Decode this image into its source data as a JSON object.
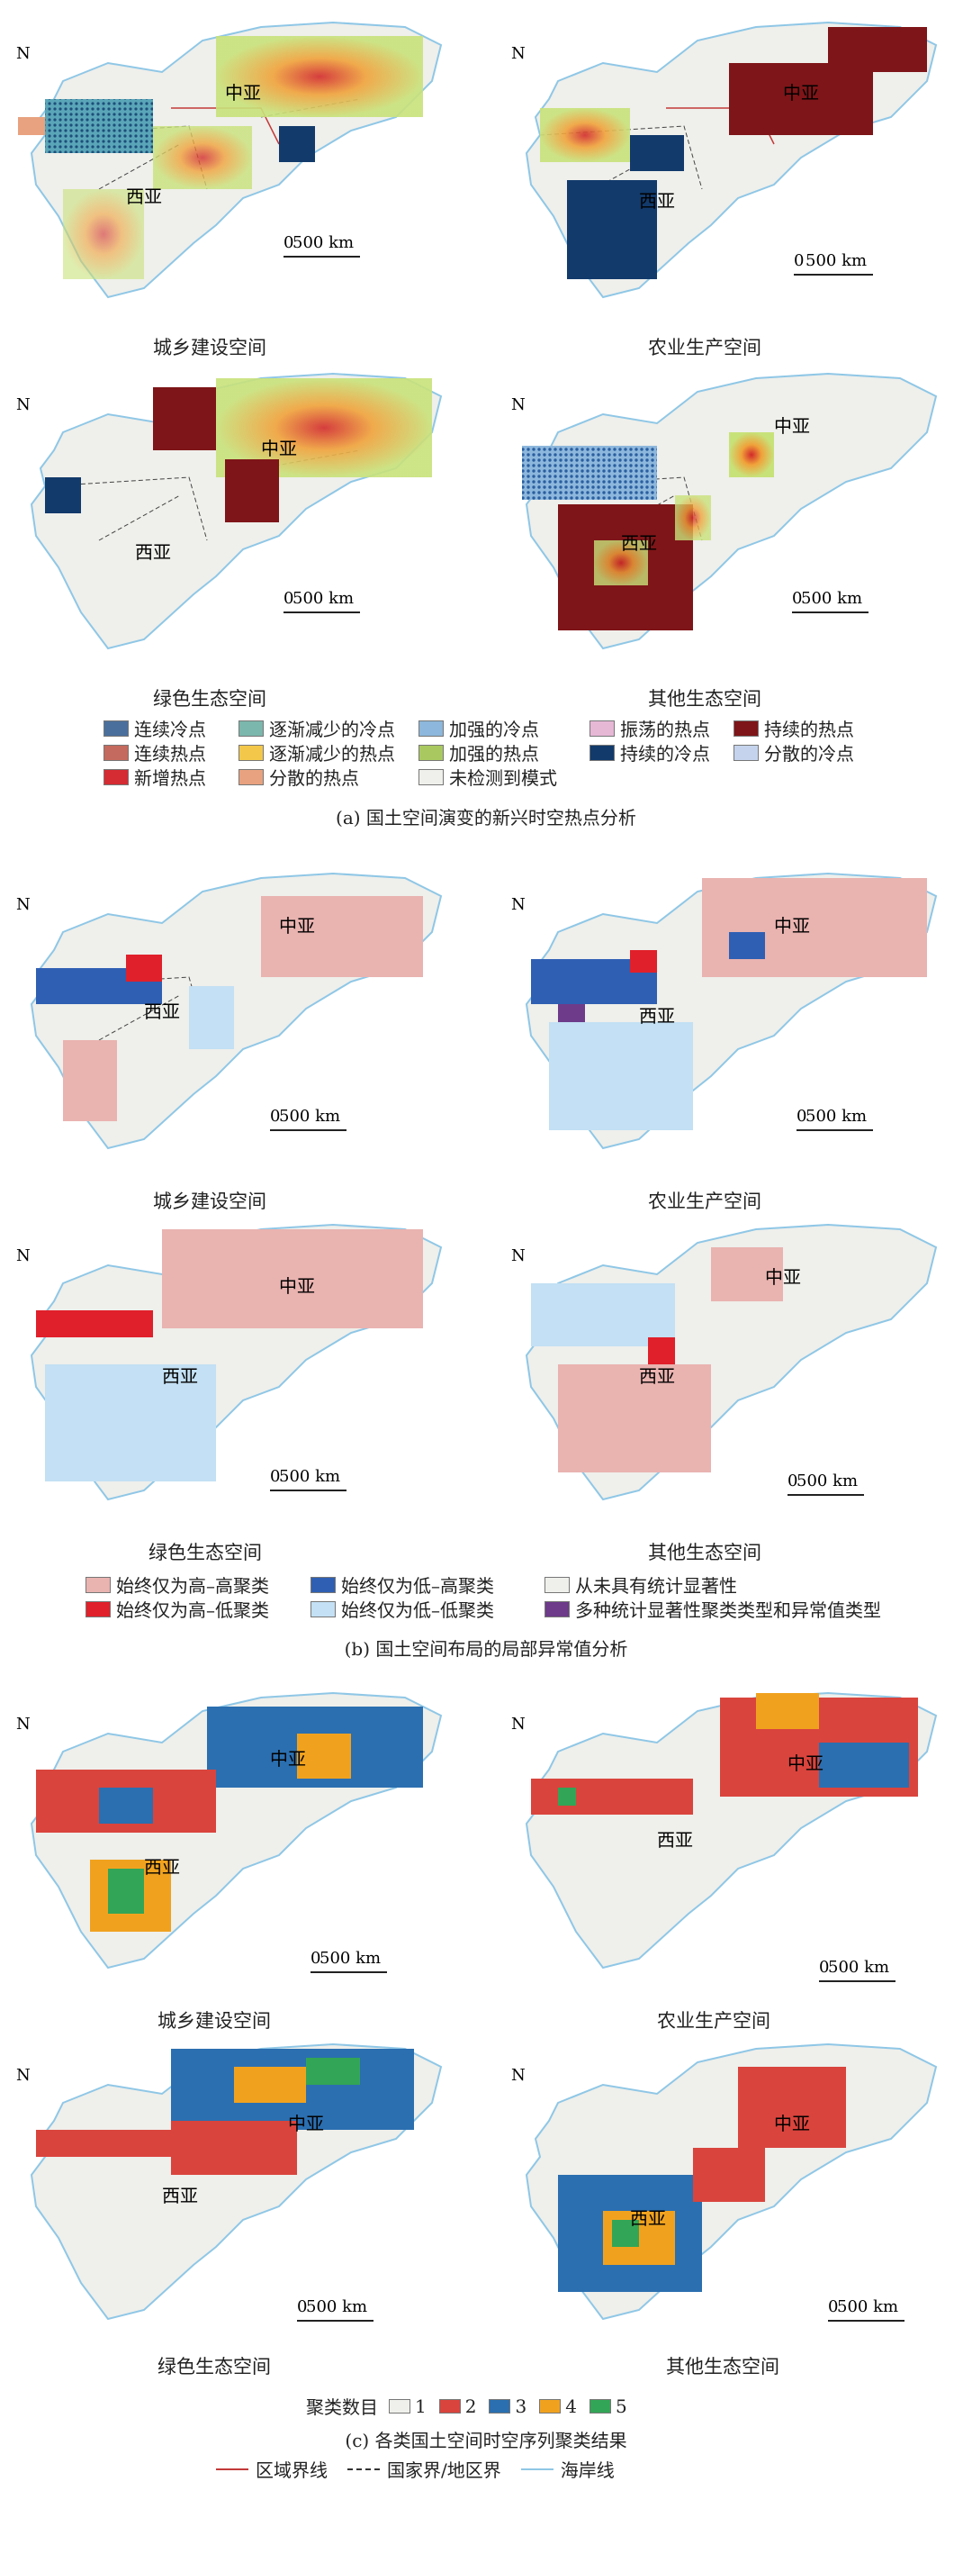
{
  "colors": {
    "land": "#efefeb",
    "coast": "#8fc7e6",
    "border": "#444444",
    "region_line": "#c23a38",
    "hot_persist": "#7e1518",
    "cold_persist": "#123a6b",
    "high_high": "#e9b3b0",
    "low_low": "#c3e0f4",
    "cluster_2": "#d9443d",
    "cluster_3": "#2b6fb0",
    "cluster_4": "#f0a21f",
    "cluster_5": "#33a556"
  },
  "map_labels": {
    "north": "N",
    "central_asia": "中亚",
    "west_asia": "西亚",
    "scale": "500 km",
    "scale_zero": "0"
  },
  "spaces": {
    "urban": "城乡建设空间",
    "agri": "农业生产空间",
    "green": "绿色生态空间",
    "other": "其他生态空间"
  },
  "section_a": {
    "title": "(a) 国土空间演变的新兴时空热点分析",
    "legend": [
      {
        "label": "连续冷点",
        "color": "#4a6f9c"
      },
      {
        "label": "逐渐减少的冷点",
        "color": "#7bb7ad"
      },
      {
        "label": "加强的冷点",
        "color": "#8db7dc"
      },
      {
        "label": "振荡的热点",
        "color": "#e7b7d6"
      },
      {
        "label": "持续的热点",
        "color": "#7e1518"
      },
      {
        "label": "连续热点",
        "color": "#c46a5e"
      },
      {
        "label": "逐渐减少的热点",
        "color": "#f3c84a"
      },
      {
        "label": "加强的热点",
        "color": "#a9c960"
      },
      {
        "label": "持续的冷点",
        "color": "#123a6b"
      },
      {
        "label": "分散的冷点",
        "color": "#c5d3ec"
      },
      {
        "label": "新增热点",
        "color": "#d52b33"
      },
      {
        "label": "分散的热点",
        "color": "#e8a27f"
      },
      {
        "label": "未检测到模式",
        "color": "#efefeb"
      }
    ]
  },
  "section_b": {
    "title": "(b) 国土空间布局的局部异常值分析",
    "legend": [
      {
        "label": "始终仅为高–高聚类",
        "color": "#e9b3b0"
      },
      {
        "label": "始终仅为低–高聚类",
        "color": "#2f5fb3"
      },
      {
        "label": "从未具有统计显著性",
        "color": "#efefeb"
      },
      {
        "label": "始终仅为高–低聚类",
        "color": "#e0202a"
      },
      {
        "label": "始终仅为低–低聚类",
        "color": "#c3e0f4"
      },
      {
        "label": "多种统计显著性聚类类型和异常值类型",
        "color": "#6d3b8a"
      }
    ]
  },
  "section_c": {
    "title": "(c) 各类国土空间时空序列聚类结果",
    "legend_title": "聚类数目",
    "legend": [
      {
        "label": "1",
        "color": "#efefeb"
      },
      {
        "label": "2",
        "color": "#d9443d"
      },
      {
        "label": "3",
        "color": "#2b6fb0"
      },
      {
        "label": "4",
        "color": "#f0a21f"
      },
      {
        "label": "5",
        "color": "#33a556"
      }
    ]
  },
  "boundary_legend": [
    {
      "label": "区域界线",
      "color": "#c23a38",
      "style": "solid"
    },
    {
      "label": "国家界/地区界",
      "color": "#333333",
      "style": "dashed"
    },
    {
      "label": "海岸线",
      "color": "#8fc7e6",
      "style": "solid"
    }
  ]
}
